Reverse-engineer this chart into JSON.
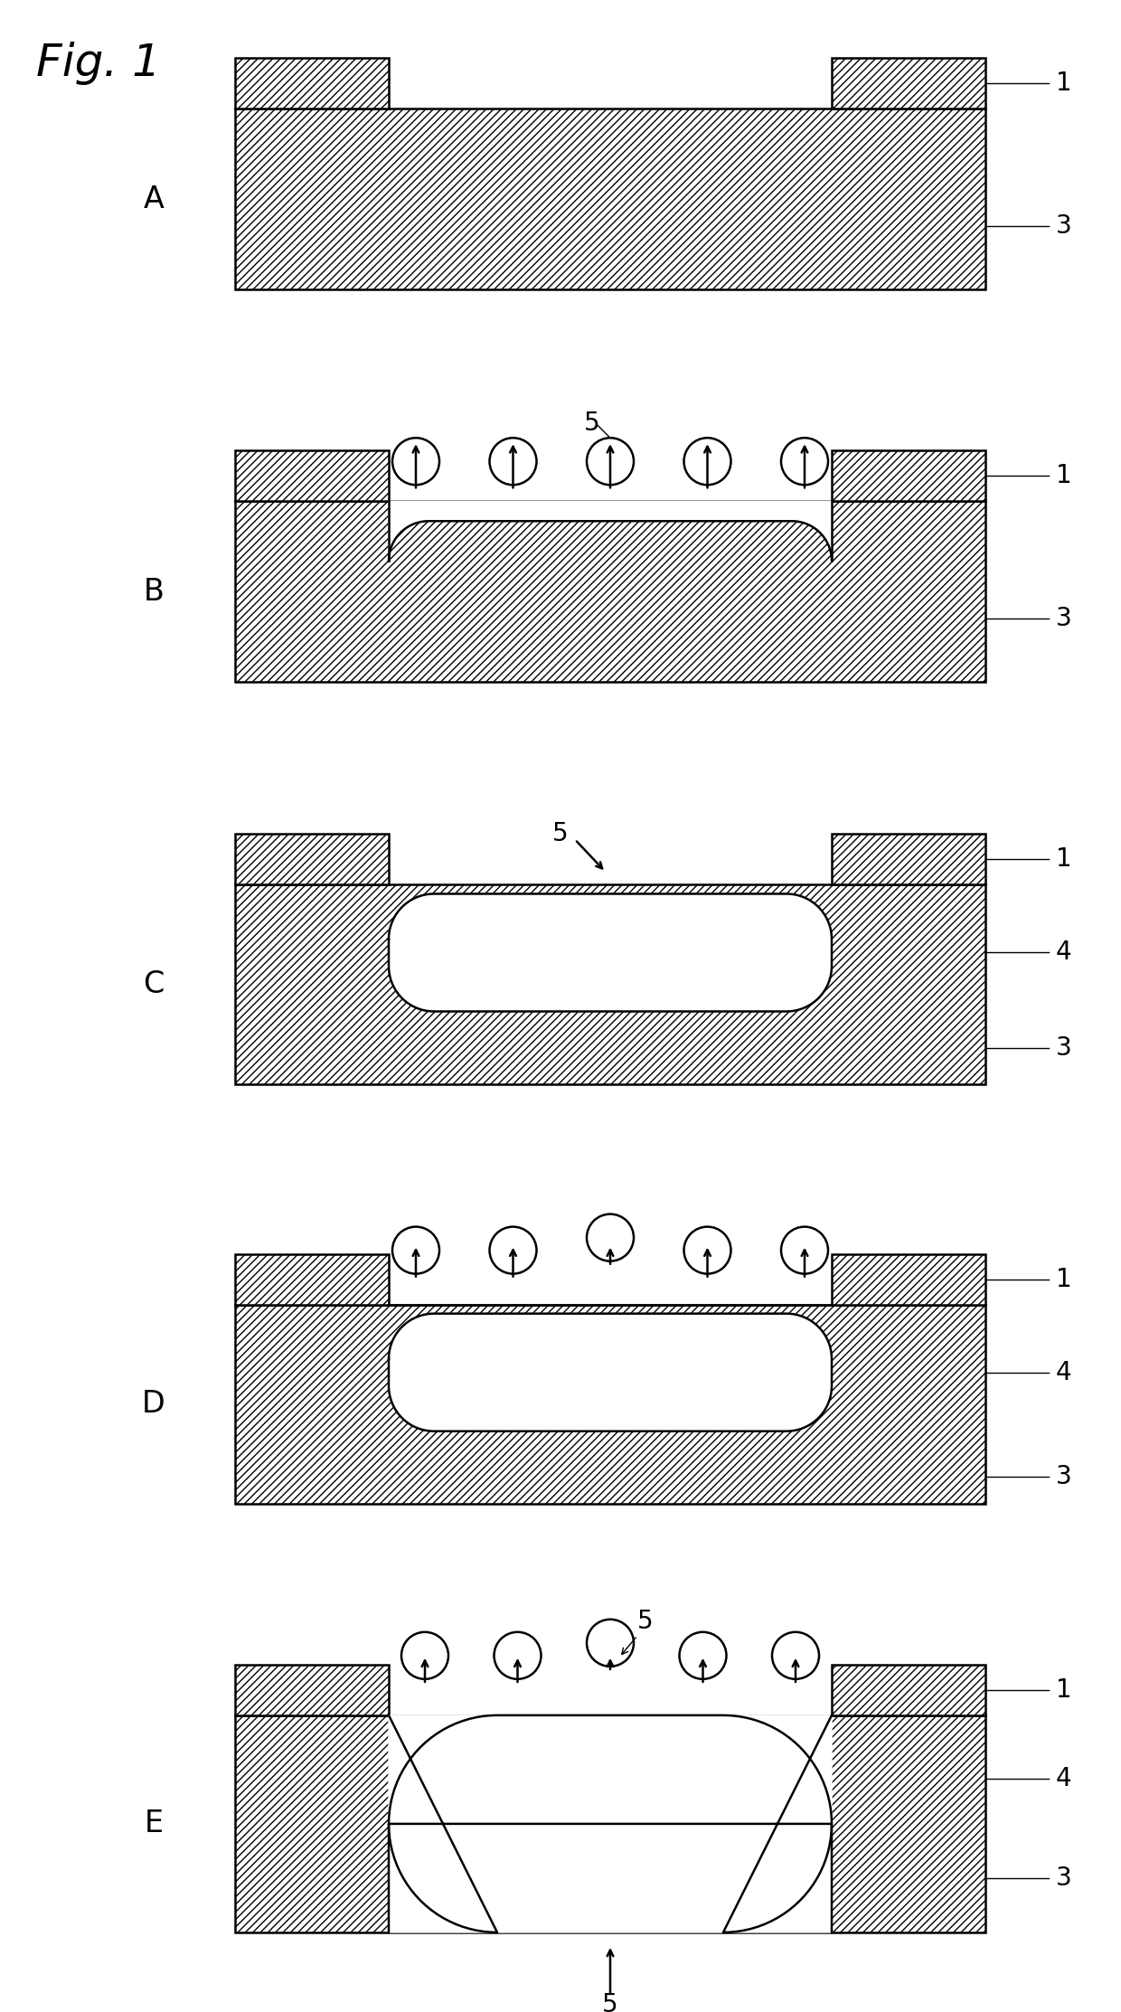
{
  "fig_label": "Fig. 1",
  "panel_labels": [
    "A",
    "B",
    "C",
    "D",
    "E"
  ],
  "background": "#ffffff",
  "label_fontsize": 24,
  "figlabel_fontsize": 36,
  "ref_fontsize": 20,
  "hatch": "////",
  "lw": 1.8
}
